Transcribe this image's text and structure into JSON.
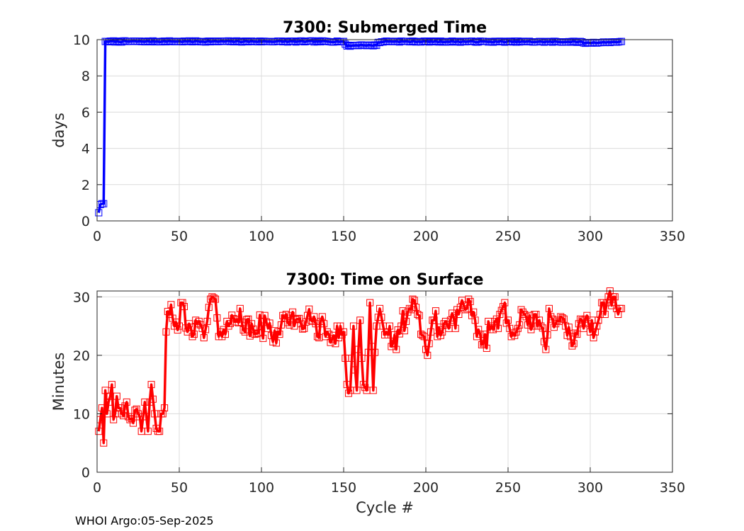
{
  "footer": "WHOI Argo:05-Sep-2025",
  "chart_data": [
    {
      "type": "line",
      "title": "7300: Submerged Time",
      "xlabel": "",
      "ylabel": "days",
      "xlim": [
        0,
        350
      ],
      "ylim": [
        0,
        10
      ],
      "xticks": [
        0,
        50,
        100,
        150,
        200,
        250,
        300,
        350
      ],
      "yticks": [
        0,
        2,
        4,
        6,
        8,
        10
      ],
      "grid": true,
      "color": "#0000ff",
      "marker": "square",
      "x_range": [
        1,
        319
      ],
      "anchor_points": [
        [
          1,
          0.45
        ],
        [
          2,
          0.9
        ],
        [
          3,
          0.95
        ],
        [
          4,
          0.95
        ],
        [
          5,
          9.9
        ],
        [
          150,
          9.9
        ],
        [
          151,
          9.75
        ],
        [
          152,
          9.65
        ],
        [
          160,
          9.7
        ],
        [
          170,
          9.68
        ],
        [
          171,
          9.85
        ],
        [
          175,
          9.9
        ],
        [
          295,
          9.88
        ],
        [
          296,
          9.82
        ],
        [
          310,
          9.85
        ],
        [
          319,
          9.9
        ]
      ]
    },
    {
      "type": "line",
      "title": "7300: Time on Surface",
      "xlabel": "Cycle #",
      "ylabel": "Minutes",
      "xlim": [
        0,
        350
      ],
      "ylim": [
        0,
        31
      ],
      "xticks": [
        0,
        50,
        100,
        150,
        200,
        250,
        300,
        350
      ],
      "yticks": [
        0,
        10,
        20,
        30
      ],
      "grid": true,
      "color": "#ff0000",
      "marker": "square",
      "x_range": [
        1,
        319
      ],
      "anchor_points": [
        [
          1,
          7
        ],
        [
          2,
          9
        ],
        [
          3,
          11
        ],
        [
          4,
          5
        ],
        [
          5,
          14
        ],
        [
          6,
          10
        ],
        [
          7,
          12
        ],
        [
          8,
          13
        ],
        [
          9,
          15
        ],
        [
          10,
          9
        ],
        [
          12,
          13
        ],
        [
          15,
          10
        ],
        [
          18,
          12
        ],
        [
          20,
          9
        ],
        [
          25,
          10
        ],
        [
          27,
          7
        ],
        [
          29,
          12
        ],
        [
          31,
          7
        ],
        [
          33,
          15
        ],
        [
          35,
          10
        ],
        [
          37,
          7
        ],
        [
          40,
          10
        ],
        [
          41,
          11
        ],
        [
          42,
          24
        ],
        [
          44,
          27
        ],
        [
          50,
          25
        ],
        [
          52,
          29
        ],
        [
          55,
          24
        ],
        [
          60,
          26
        ],
        [
          65,
          23
        ],
        [
          70,
          30
        ],
        [
          75,
          24
        ],
        [
          80,
          25
        ],
        [
          87,
          28
        ],
        [
          90,
          24
        ],
        [
          100,
          25
        ],
        [
          110,
          24
        ],
        [
          115,
          27
        ],
        [
          120,
          25
        ],
        [
          130,
          26
        ],
        [
          140,
          24
        ],
        [
          145,
          22
        ],
        [
          148,
          25
        ],
        [
          150,
          24
        ],
        [
          152,
          15
        ],
        [
          154,
          14
        ],
        [
          156,
          25
        ],
        [
          158,
          14
        ],
        [
          160,
          26
        ],
        [
          162,
          15
        ],
        [
          164,
          14
        ],
        [
          166,
          29
        ],
        [
          168,
          14
        ],
        [
          170,
          25
        ],
        [
          172,
          28
        ],
        [
          174,
          25
        ],
        [
          180,
          22
        ],
        [
          182,
          21
        ],
        [
          185,
          25
        ],
        [
          190,
          28
        ],
        [
          195,
          27
        ],
        [
          200,
          21
        ],
        [
          205,
          26
        ],
        [
          210,
          24
        ],
        [
          215,
          26
        ],
        [
          220,
          27
        ],
        [
          225,
          28
        ],
        [
          230,
          26
        ],
        [
          235,
          22
        ],
        [
          240,
          25
        ],
        [
          245,
          27
        ],
        [
          248,
          29
        ],
        [
          250,
          26
        ],
        [
          255,
          24
        ],
        [
          260,
          27
        ],
        [
          265,
          25
        ],
        [
          270,
          25
        ],
        [
          273,
          21
        ],
        [
          275,
          28
        ],
        [
          280,
          26
        ],
        [
          285,
          25
        ],
        [
          290,
          22
        ],
        [
          295,
          26
        ],
        [
          300,
          24
        ],
        [
          303,
          24
        ],
        [
          305,
          26
        ],
        [
          308,
          29
        ],
        [
          310,
          29
        ],
        [
          312,
          31
        ],
        [
          314,
          30
        ],
        [
          316,
          28
        ],
        [
          319,
          28
        ]
      ]
    }
  ]
}
